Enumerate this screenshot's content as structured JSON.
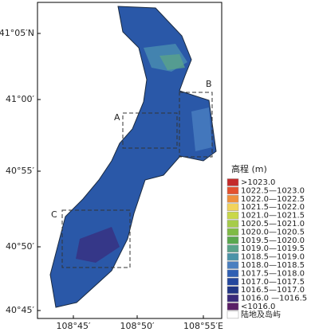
{
  "axes": {
    "yticks": [
      "41°05′N",
      "41°00′",
      "40°55′",
      "40°50′",
      "40°45′"
    ],
    "xticks": [
      "108°45′",
      "108°50′",
      "108°55′E"
    ]
  },
  "labels": {
    "A": "A",
    "B": "B",
    "C": "C"
  },
  "legend": {
    "title": "高程 (m)",
    "items": [
      {
        "label": ">1023.0",
        "color": "#c42a2a"
      },
      {
        "label": "1022.5—1023.0",
        "color": "#e4512e"
      },
      {
        "label": "1022.0—1022.5",
        "color": "#f0903c"
      },
      {
        "label": "1021.5—1022.0",
        "color": "#f2d35a"
      },
      {
        "label": "1021.0—1021.5",
        "color": "#c9d848"
      },
      {
        "label": "1020.5—1021.0",
        "color": "#a6cc4a"
      },
      {
        "label": "1020.0—1020.5",
        "color": "#7fbb45"
      },
      {
        "label": "1019.5—1020.0",
        "color": "#5aa84e"
      },
      {
        "label": "1019.0—1019.5",
        "color": "#5aa38a"
      },
      {
        "label": "1018.5—1019.0",
        "color": "#4b93a8"
      },
      {
        "label": "1018.0—1018.5",
        "color": "#4a7fc0"
      },
      {
        "label": "1017.5—1018.0",
        "color": "#2f5fb4"
      },
      {
        "label": "1017.0—1017.5",
        "color": "#24479e"
      },
      {
        "label": "1016.5—1017.0",
        "color": "#213685"
      },
      {
        "label": "1016.0 —1016.5",
        "color": "#3a2a7a"
      },
      {
        "label": "<1016.0",
        "color": "#5a1f66"
      },
      {
        "label": "陆地及岛屿",
        "color": "#ffffff"
      }
    ]
  }
}
